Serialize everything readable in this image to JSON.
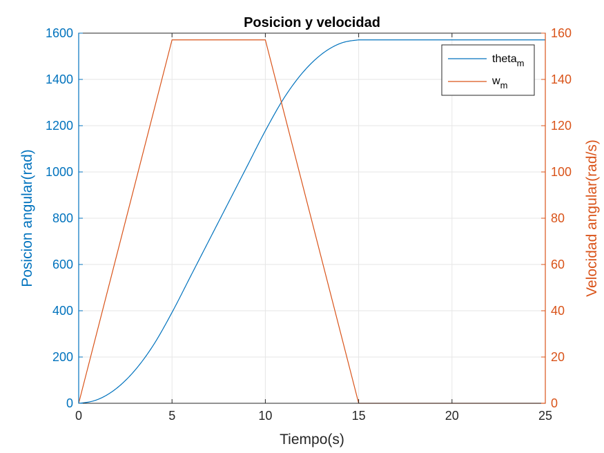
{
  "chart_data": {
    "type": "line",
    "title": "Posicion y velocidad",
    "xlabel": "Tiempo(s)",
    "ylabel_left": "Posicion angular(rad)",
    "ylabel_right": "Velocidad angular(rad/s)",
    "xlim": [
      0,
      25
    ],
    "ylim_left": [
      0,
      1600
    ],
    "ylim_right": [
      0,
      160
    ],
    "xticks": [
      0,
      5,
      10,
      15,
      20,
      25
    ],
    "yticks_left": [
      0,
      200,
      400,
      600,
      800,
      1000,
      1200,
      1400,
      1600
    ],
    "yticks_right": [
      0,
      20,
      40,
      60,
      80,
      100,
      120,
      140,
      160
    ],
    "grid": true,
    "legend_position": "top-right",
    "legend": [
      {
        "base": "theta",
        "sub": "m"
      },
      {
        "base": "w",
        "sub": "m"
      }
    ],
    "series": [
      {
        "name": "theta_m",
        "axis": "left",
        "color": "#0072BD",
        "x": [
          0,
          1,
          2,
          3,
          4,
          5,
          6,
          7,
          8,
          9,
          10,
          11,
          12,
          13,
          14,
          15,
          20,
          25
        ],
        "y": [
          0,
          15.7,
          62.8,
          141.4,
          251.3,
          392.7,
          549.8,
          706.9,
          863.9,
          1021,
          1178.1,
          1319.5,
          1429.4,
          1508,
          1555.1,
          1570.8,
          1570.8,
          1570.8
        ]
      },
      {
        "name": "w_m",
        "axis": "right",
        "color": "#D95319",
        "x": [
          0,
          5,
          10,
          15,
          20,
          25
        ],
        "y": [
          0,
          157.08,
          157.08,
          0,
          0,
          0
        ]
      }
    ]
  },
  "colors": {
    "left_axis": "#0072BD",
    "right_axis": "#D95319",
    "grid": "#e6e6e6",
    "box": "#262626"
  }
}
